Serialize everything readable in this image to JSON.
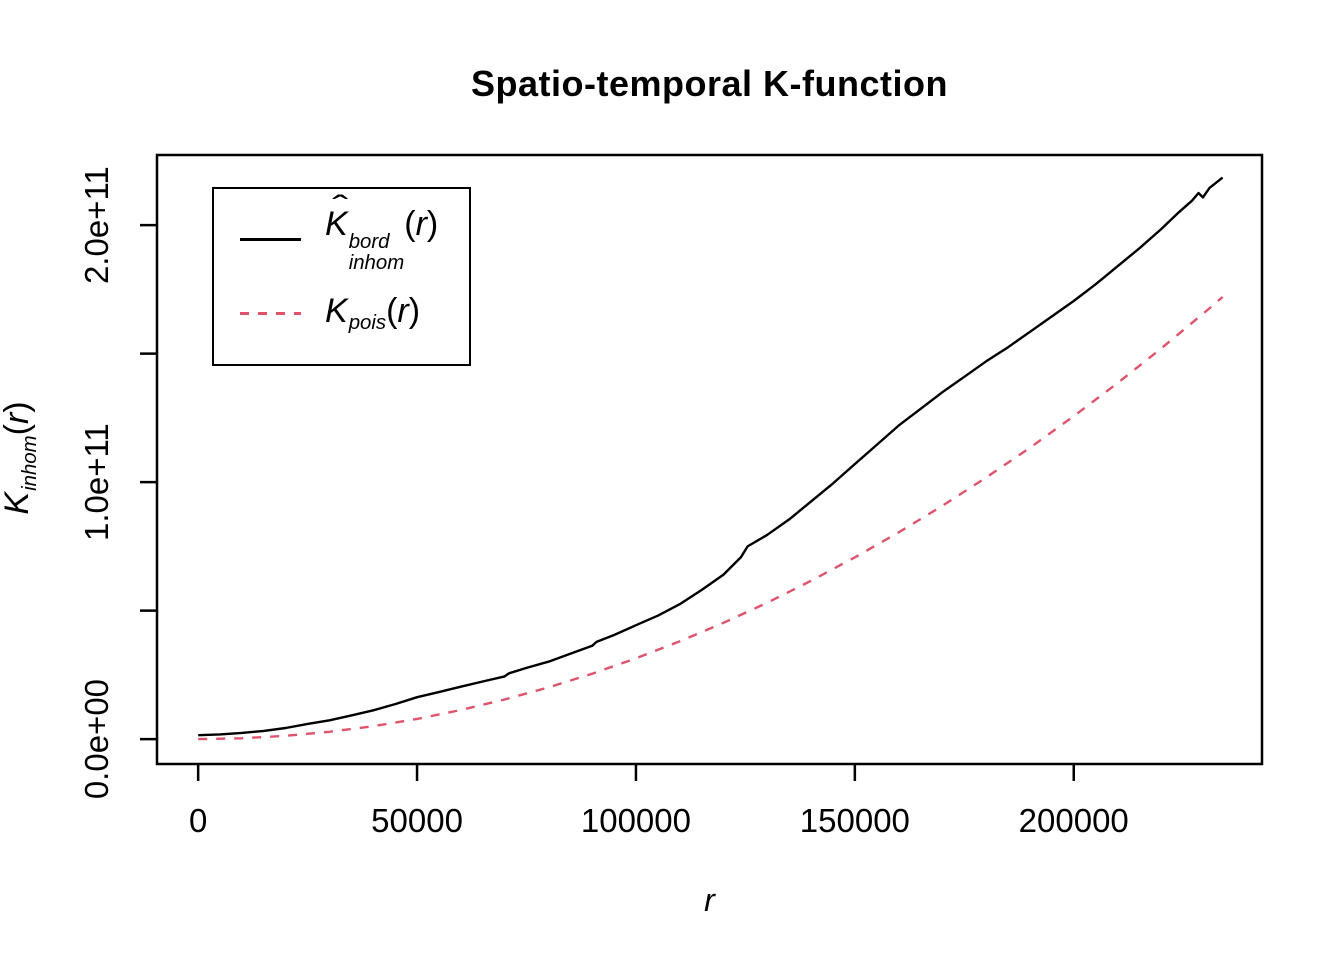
{
  "chart_data": {
    "type": "line",
    "title": "Spatio-temporal K-function",
    "xlabel": "r",
    "ylabel": "K_inhom(r)",
    "ylabel_parts": {
      "base": "K",
      "sub": "inhom",
      "arg_open": "(",
      "arg_var": "r",
      "arg_close": ")"
    },
    "xlabel_parts": {
      "var": "r"
    },
    "grid": false,
    "x_axis": {
      "lim": [
        -9400,
        243000
      ],
      "ticks": [
        0,
        50000,
        100000,
        150000,
        200000
      ],
      "tick_labels": [
        "0",
        "50000",
        "100000",
        "150000",
        "200000"
      ]
    },
    "y_axis": {
      "lim": [
        -9700000000.0,
        227300000000.0
      ],
      "ticks": [
        0,
        50000000000.0,
        100000000000.0,
        150000000000.0,
        200000000000.0
      ],
      "tick_labels": [
        "0.0e+00",
        "",
        "1.0e+11",
        "",
        "2.0e+11"
      ]
    },
    "legend": {
      "position": "top-left",
      "entries": [
        {
          "line": "solid",
          "color": "#000000",
          "label_parts": {
            "hat": "ˆ",
            "base": "K",
            "sup": "bord",
            "sub": "inhom",
            "arg_open": "(",
            "arg_var": "r",
            "arg_close": ")"
          }
        },
        {
          "line": "dashed",
          "color": "#DF536B",
          "label_parts": {
            "base": "K",
            "sub": "pois",
            "arg_open": "(",
            "arg_var": "r",
            "arg_close": ")"
          }
        }
      ]
    },
    "series": [
      {
        "name": "K-inhom-bord-estimate",
        "color": "#000000",
        "style": "solid",
        "points": [
          [
            0,
            1500000000.0
          ],
          [
            5000,
            1800000000.0
          ],
          [
            10000,
            2400000000.0
          ],
          [
            15000,
            3200000000.0
          ],
          [
            20000,
            4300000000.0
          ],
          [
            25000,
            5900000000.0
          ],
          [
            30000,
            7300000000.0
          ],
          [
            35000,
            9200000000.0
          ],
          [
            40000,
            11200000000.0
          ],
          [
            45000,
            13600000000.0
          ],
          [
            50000,
            16300000000.0
          ],
          [
            55000,
            18300000000.0
          ],
          [
            60000,
            20400000000.0
          ],
          [
            65000,
            22400000000.0
          ],
          [
            70000,
            24400000000.0
          ],
          [
            71000,
            25600000000.0
          ],
          [
            75000,
            27700000000.0
          ],
          [
            80000,
            30100000000.0
          ],
          [
            85000,
            33200000000.0
          ],
          [
            90000,
            36300000000.0
          ],
          [
            91000,
            37800000000.0
          ],
          [
            95000,
            40500000000.0
          ],
          [
            100000,
            44300000000.0
          ],
          [
            105000,
            48000000000.0
          ],
          [
            110000,
            52500000000.0
          ],
          [
            115000,
            58000000000.0
          ],
          [
            120000,
            64000000000.0
          ],
          [
            124000,
            70800000000.0
          ],
          [
            125500,
            75000000000.0
          ],
          [
            130000,
            79500000000.0
          ],
          [
            135000,
            85500000000.0
          ],
          [
            140000,
            92500000000.0
          ],
          [
            145000,
            99500000000.0
          ],
          [
            150000,
            107000000000.0
          ],
          [
            155000,
            114500000000.0
          ],
          [
            160000,
            122000000000.0
          ],
          [
            165000,
            128500000000.0
          ],
          [
            170000,
            135000000000.0
          ],
          [
            175000,
            141000000000.0
          ],
          [
            180000,
            147000000000.0
          ],
          [
            185000,
            152500000000.0
          ],
          [
            190000,
            158500000000.0
          ],
          [
            195000,
            164500000000.0
          ],
          [
            200000,
            170500000000.0
          ],
          [
            205000,
            177000000000.0
          ],
          [
            210000,
            184000000000.0
          ],
          [
            215000,
            191000000000.0
          ],
          [
            220000,
            198500000000.0
          ],
          [
            224000,
            205000000000.0
          ],
          [
            227000,
            209500000000.0
          ],
          [
            228500,
            212500000000.0
          ],
          [
            229500,
            210800000000.0
          ],
          [
            231000,
            214500000000.0
          ],
          [
            234000,
            218500000000.0
          ]
        ]
      },
      {
        "name": "K-pois-theoretical",
        "color": "#DF536B",
        "style": "dashed",
        "points": [
          [
            0,
            0
          ],
          [
            10000,
            314000000.0
          ],
          [
            20000,
            1257000000.0
          ],
          [
            30000,
            2827000000.0
          ],
          [
            40000,
            5027000000.0
          ],
          [
            50000,
            7854000000.0
          ],
          [
            60000,
            11310000000.0
          ],
          [
            70000,
            15390000000.0
          ],
          [
            80000,
            20110000000.0
          ],
          [
            90000,
            25450000000.0
          ],
          [
            100000,
            31420000000.0
          ],
          [
            110000,
            38010000000.0
          ],
          [
            120000,
            45240000000.0
          ],
          [
            130000,
            53090000000.0
          ],
          [
            140000,
            61580000000.0
          ],
          [
            150000,
            70690000000.0
          ],
          [
            160000,
            80420000000.0
          ],
          [
            170000,
            90790000000.0
          ],
          [
            180000,
            101790000000.0
          ],
          [
            190000,
            113410000000.0
          ],
          [
            200000,
            125660000000.0
          ],
          [
            210000,
            138540000000.0
          ],
          [
            220000,
            152050000000.0
          ],
          [
            230000,
            166190000000.0
          ],
          [
            234000,
            172020000000.0
          ]
        ]
      }
    ]
  }
}
